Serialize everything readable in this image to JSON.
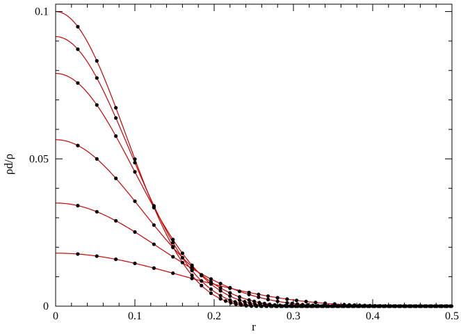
{
  "chart_data": {
    "type": "scatter",
    "title": "",
    "xlabel": "r",
    "ylabel": "ρd/ρ",
    "xlim": [
      0,
      0.5
    ],
    "ylim": [
      0,
      0.1025
    ],
    "grid": false,
    "x_ticks": [
      0,
      0.1,
      0.2,
      0.3,
      0.4,
      0.5
    ],
    "x_tick_labels": [
      "0",
      "0.1",
      "0.2",
      "0.3",
      "0.4",
      "0.5"
    ],
    "y_ticks": [
      0,
      0.05,
      0.1
    ],
    "y_tick_labels": [
      "0",
      "0.05",
      "0.1"
    ],
    "point_spacing": 0.0083,
    "fit_color": "#cc0000",
    "point_color": "#000000",
    "series": [
      {
        "peak": 0.1,
        "r_max": 0.25
      },
      {
        "peak": 0.0915,
        "r_max": 0.262
      },
      {
        "peak": 0.079,
        "r_max": 0.28
      },
      {
        "peak": 0.0565,
        "r_max": 0.305
      },
      {
        "peak": 0.035,
        "r_max": 0.36
      },
      {
        "peak": 0.018,
        "r_max": 0.445
      }
    ]
  }
}
